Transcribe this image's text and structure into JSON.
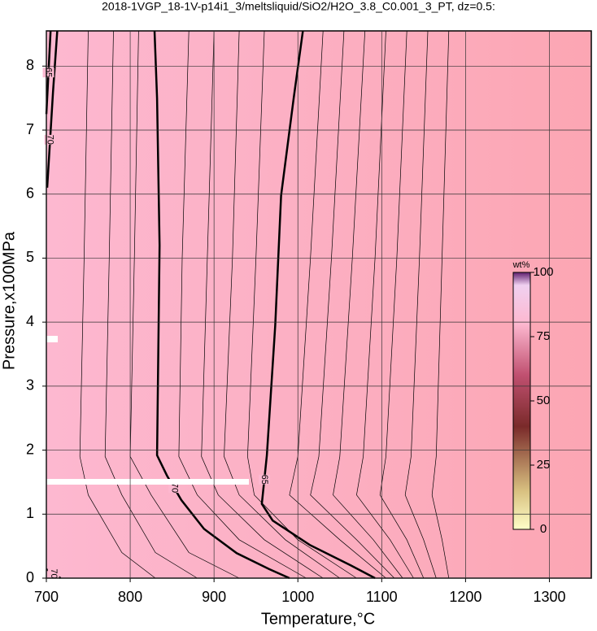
{
  "chart_data": {
    "type": "contour",
    "title": "2018-1VGP_18-1V-p14i1_3/meltsliquid/SiO2/H2O_3.8_C0.001_3_PT, dz=0.5:",
    "x_label": "Temperature,°C",
    "y_label": "Pressure,x100MPa",
    "xlim": [
      700,
      1350
    ],
    "ylim": [
      0,
      8.55
    ],
    "xticks": [
      700,
      800,
      900,
      1000,
      1100,
      1200,
      1300
    ],
    "yticks": [
      0,
      1,
      2,
      3,
      4,
      5,
      6,
      7,
      8
    ],
    "grid": true,
    "colorbar": {
      "label": "wt%",
      "lim": [
        0,
        100
      ],
      "ticks": [
        0,
        25,
        50,
        75,
        100
      ]
    },
    "series": [
      {
        "label": "70",
        "bold": true,
        "x": [
          829,
          832,
          835,
          832,
          844,
          861,
          888,
          927,
          966,
          990
        ],
        "values": [
          8.55,
          7.5,
          5.2,
          1.92,
          1.6,
          1.22,
          0.77,
          0.39,
          0.14,
          0
        ]
      },
      {
        "label": "65",
        "bold": true,
        "x": [
          1006,
          995,
          980,
          973,
          963,
          957,
          970,
          1014,
          1063,
          1092
        ],
        "values": [
          8.55,
          7.5,
          5.98,
          3.95,
          1.92,
          1.16,
          0.9,
          0.52,
          0.2,
          0
        ]
      },
      {
        "label": "70",
        "bold": true,
        "x": [
          713,
          708,
          701
        ],
        "values": [
          8.55,
          7.6,
          6.1
        ]
      },
      {
        "label": "65",
        "bold": true,
        "x": [
          705,
          700
        ],
        "values": [
          8.55,
          7.25
        ]
      },
      {
        "label": "70",
        "bold": true,
        "x": [
          700,
          717
        ],
        "values": [
          0.14,
          0
        ]
      },
      {
        "bold": false,
        "x": [
          870,
          862,
          858,
          880,
          930,
          1010
        ],
        "values": [
          8.55,
          5,
          1.9,
          1.3,
          0.6,
          0
        ]
      },
      {
        "bold": false,
        "x": [
          900,
          892,
          885,
          905,
          960,
          1030
        ],
        "values": [
          8.55,
          5,
          1.9,
          1.3,
          0.6,
          0
        ]
      },
      {
        "bold": false,
        "x": [
          930,
          922,
          912,
          930,
          985,
          1050
        ],
        "values": [
          8.55,
          5,
          1.9,
          1.3,
          0.6,
          0
        ]
      },
      {
        "bold": false,
        "x": [
          960,
          950,
          940,
          948,
          1000,
          1070
        ],
        "values": [
          8.55,
          5,
          1.9,
          1.3,
          0.6,
          0
        ]
      },
      {
        "bold": false,
        "x": [
          1030,
          1015,
          1000,
          990,
          1050,
          1105
        ],
        "values": [
          8.55,
          5,
          1.9,
          1.3,
          0.6,
          0
        ]
      },
      {
        "bold": false,
        "x": [
          1055,
          1040,
          1025,
          1015,
          1070,
          1115
        ],
        "values": [
          8.55,
          5,
          1.9,
          1.3,
          0.6,
          0
        ]
      },
      {
        "bold": false,
        "x": [
          1080,
          1065,
          1050,
          1042,
          1090,
          1125
        ],
        "values": [
          8.55,
          5,
          1.9,
          1.3,
          0.6,
          0
        ]
      },
      {
        "bold": false,
        "x": [
          1105,
          1092,
          1078,
          1070,
          1110,
          1138
        ],
        "values": [
          8.55,
          5,
          1.9,
          1.3,
          0.6,
          0
        ]
      },
      {
        "bold": false,
        "x": [
          1130,
          1118,
          1105,
          1098,
          1130,
          1150
        ],
        "values": [
          8.55,
          5,
          1.9,
          1.3,
          0.6,
          0
        ]
      },
      {
        "bold": false,
        "x": [
          1155,
          1145,
          1135,
          1128,
          1150,
          1165
        ],
        "values": [
          8.55,
          5,
          1.9,
          1.3,
          0.6,
          0
        ]
      },
      {
        "bold": false,
        "x": [
          1180,
          1172,
          1165,
          1160,
          1172,
          1180
        ],
        "values": [
          8.55,
          5,
          1.9,
          1.3,
          0.6,
          0
        ]
      },
      {
        "bold": false,
        "x": [
          750,
          745,
          740,
          750,
          790,
          830
        ],
        "values": [
          8.55,
          5,
          1.9,
          1.3,
          0.4,
          0
        ]
      },
      {
        "bold": false,
        "x": [
          780,
          775,
          770,
          790,
          830,
          880
        ],
        "values": [
          8.55,
          5,
          1.9,
          1.3,
          0.4,
          0
        ]
      },
      {
        "bold": false,
        "x": [
          810,
          805,
          800,
          825,
          870,
          930
        ],
        "values": [
          8.55,
          5,
          1.9,
          1.3,
          0.4,
          0
        ]
      }
    ]
  }
}
